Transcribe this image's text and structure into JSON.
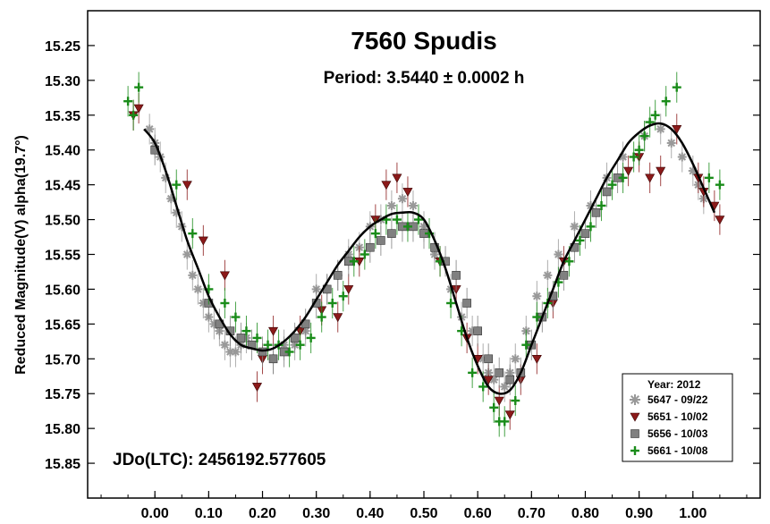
{
  "chart_data": {
    "type": "scatter",
    "title": "7560 Spudis",
    "subtitle": "Period: 3.5440 ± 0.0002 h",
    "annotation": "JDo(LTC): 2456192.577605",
    "ylabel": "Reduced Magnitude(V) alpha(19.7°)",
    "xlabel": "",
    "xlim": [
      -0.125,
      1.125
    ],
    "ylim": [
      15.9,
      15.2
    ],
    "y_inverted": true,
    "x_ticks": [
      "0.00",
      "0.10",
      "0.20",
      "0.30",
      "0.40",
      "0.50",
      "0.60",
      "0.70",
      "0.80",
      "0.90",
      "1.00"
    ],
    "y_ticks": [
      "15.25",
      "15.30",
      "15.35",
      "15.40",
      "15.45",
      "15.50",
      "15.55",
      "15.60",
      "15.65",
      "15.70",
      "15.75",
      "15.80",
      "15.85"
    ],
    "grid": false,
    "legend": {
      "title": "Year: 2012",
      "position": "bottom-right",
      "entries": [
        {
          "label": "5647 - 09/22",
          "marker": "asterisk",
          "color": "#999999"
        },
        {
          "label": "5651 - 10/02",
          "marker": "triangle-down",
          "color": "#8b1a1a"
        },
        {
          "label": "5656 - 10/03",
          "marker": "square",
          "color": "#808080"
        },
        {
          "label": "5661 - 10/08",
          "marker": "plus",
          "color": "#1a8c1a"
        }
      ]
    },
    "fit_curve": {
      "x": [
        -0.02,
        0.0,
        0.02,
        0.04,
        0.06,
        0.08,
        0.1,
        0.12,
        0.14,
        0.16,
        0.18,
        0.2,
        0.22,
        0.24,
        0.26,
        0.28,
        0.3,
        0.32,
        0.34,
        0.36,
        0.38,
        0.4,
        0.42,
        0.44,
        0.46,
        0.48,
        0.5,
        0.52,
        0.54,
        0.56,
        0.58,
        0.6,
        0.62,
        0.64,
        0.66,
        0.68,
        0.7,
        0.72,
        0.74,
        0.76,
        0.78,
        0.8,
        0.82,
        0.84,
        0.86,
        0.88,
        0.9,
        0.92,
        0.94,
        0.96,
        0.98,
        1.0,
        1.02,
        1.04
      ],
      "y": [
        15.37,
        15.39,
        15.43,
        15.48,
        15.53,
        15.57,
        15.61,
        15.64,
        15.665,
        15.68,
        15.685,
        15.688,
        15.685,
        15.675,
        15.66,
        15.64,
        15.615,
        15.59,
        15.565,
        15.545,
        15.525,
        15.51,
        15.5,
        15.492,
        15.49,
        15.49,
        15.5,
        15.53,
        15.57,
        15.62,
        15.67,
        15.71,
        15.74,
        15.75,
        15.745,
        15.72,
        15.68,
        15.64,
        15.6,
        15.56,
        15.53,
        15.5,
        15.47,
        15.44,
        15.415,
        15.39,
        15.375,
        15.365,
        15.362,
        15.37,
        15.39,
        15.42,
        15.455,
        15.49
      ]
    },
    "series": [
      {
        "name": "5647 - 09/22",
        "marker": "asterisk",
        "color": "#999999",
        "x": [
          -0.01,
          0.0,
          0.01,
          0.02,
          0.03,
          0.04,
          0.05,
          0.06,
          0.07,
          0.08,
          0.09,
          0.1,
          0.11,
          0.12,
          0.13,
          0.14,
          0.15,
          0.16,
          0.17,
          0.22,
          0.24,
          0.26,
          0.28,
          0.3,
          0.32,
          0.34,
          0.36,
          0.38,
          0.4,
          0.42,
          0.44,
          0.46,
          0.48,
          0.5,
          0.52,
          0.55,
          0.57,
          0.59,
          0.61,
          0.62,
          0.63,
          0.65,
          0.66,
          0.67,
          0.69,
          0.71,
          0.73,
          0.75,
          0.78,
          0.81,
          0.84,
          0.87,
          0.91,
          0.94,
          0.96,
          0.98,
          1.0,
          1.01,
          1.02
        ],
        "y": [
          15.37,
          15.39,
          15.41,
          15.44,
          15.47,
          15.49,
          15.51,
          15.55,
          15.58,
          15.6,
          15.62,
          15.64,
          15.65,
          15.66,
          15.68,
          15.69,
          15.69,
          15.68,
          15.67,
          15.7,
          15.68,
          15.68,
          15.66,
          15.6,
          15.6,
          15.58,
          15.55,
          15.54,
          15.51,
          15.5,
          15.48,
          15.47,
          15.48,
          15.51,
          15.55,
          15.6,
          15.64,
          15.66,
          15.7,
          15.72,
          15.73,
          15.74,
          15.72,
          15.7,
          15.66,
          15.61,
          15.58,
          15.55,
          15.51,
          15.48,
          15.44,
          15.41,
          15.38,
          15.37,
          15.39,
          15.41,
          15.43,
          15.45,
          15.47
        ]
      },
      {
        "name": "5651 - 10/02",
        "marker": "triangle-down",
        "color": "#8b1a1a",
        "x": [
          -0.04,
          -0.03,
          0.06,
          0.09,
          0.13,
          0.19,
          0.2,
          0.22,
          0.27,
          0.31,
          0.34,
          0.36,
          0.38,
          0.41,
          0.43,
          0.45,
          0.47,
          0.53,
          0.56,
          0.58,
          0.6,
          0.62,
          0.64,
          0.66,
          0.68,
          0.71,
          0.74,
          0.76,
          0.88,
          0.9,
          0.92,
          0.94,
          0.97,
          1.01,
          1.02,
          1.04,
          1.05
        ],
        "y": [
          15.35,
          15.34,
          15.45,
          15.53,
          15.58,
          15.74,
          15.7,
          15.66,
          15.66,
          15.63,
          15.64,
          15.6,
          15.56,
          15.5,
          15.45,
          15.44,
          15.46,
          15.56,
          15.6,
          15.67,
          15.7,
          15.73,
          15.76,
          15.78,
          15.73,
          15.7,
          15.62,
          15.56,
          15.43,
          15.41,
          15.44,
          15.43,
          15.37,
          15.44,
          15.46,
          15.48,
          15.5
        ]
      },
      {
        "name": "5656 - 10/03",
        "marker": "square",
        "color": "#808080",
        "x": [
          0.0,
          0.1,
          0.12,
          0.14,
          0.16,
          0.18,
          0.2,
          0.22,
          0.24,
          0.26,
          0.28,
          0.3,
          0.32,
          0.34,
          0.36,
          0.4,
          0.42,
          0.44,
          0.46,
          0.48,
          0.5,
          0.52,
          0.54,
          0.56,
          0.58,
          0.6,
          0.62,
          0.64,
          0.66,
          0.68,
          0.7,
          0.72,
          0.74,
          0.76,
          0.78,
          0.8,
          0.82,
          0.84,
          0.86
        ],
        "y": [
          15.4,
          15.62,
          15.65,
          15.66,
          15.67,
          15.68,
          15.69,
          15.7,
          15.69,
          15.67,
          15.65,
          15.62,
          15.6,
          15.58,
          15.56,
          15.54,
          15.53,
          15.52,
          15.51,
          15.51,
          15.52,
          15.54,
          15.56,
          15.58,
          15.62,
          15.66,
          15.7,
          15.72,
          15.73,
          15.72,
          15.68,
          15.64,
          15.61,
          15.58,
          15.54,
          15.52,
          15.49,
          15.46,
          15.44
        ]
      },
      {
        "name": "5661 - 10/08",
        "marker": "plus",
        "color": "#1a8c1a",
        "x": [
          -0.05,
          -0.04,
          -0.03,
          0.04,
          0.07,
          0.1,
          0.13,
          0.15,
          0.17,
          0.19,
          0.21,
          0.23,
          0.25,
          0.27,
          0.29,
          0.31,
          0.33,
          0.35,
          0.37,
          0.39,
          0.41,
          0.43,
          0.45,
          0.47,
          0.49,
          0.51,
          0.53,
          0.55,
          0.57,
          0.59,
          0.61,
          0.63,
          0.64,
          0.65,
          0.67,
          0.69,
          0.71,
          0.73,
          0.75,
          0.77,
          0.79,
          0.81,
          0.83,
          0.85,
          0.87,
          0.89,
          0.9,
          0.91,
          0.92,
          0.93,
          0.95,
          0.97,
          1.03,
          1.05
        ],
        "y": [
          15.33,
          15.35,
          15.31,
          15.45,
          15.52,
          15.6,
          15.62,
          15.64,
          15.66,
          15.67,
          15.68,
          15.68,
          15.69,
          15.68,
          15.67,
          15.64,
          15.62,
          15.61,
          15.56,
          15.55,
          15.52,
          15.5,
          15.5,
          15.51,
          15.5,
          15.52,
          15.56,
          15.62,
          15.66,
          15.72,
          15.74,
          15.77,
          15.79,
          15.79,
          15.76,
          15.68,
          15.64,
          15.62,
          15.59,
          15.56,
          15.53,
          15.51,
          15.48,
          15.45,
          15.44,
          15.41,
          15.4,
          15.38,
          15.36,
          15.35,
          15.33,
          15.31,
          15.44,
          15.45
        ]
      }
    ]
  }
}
